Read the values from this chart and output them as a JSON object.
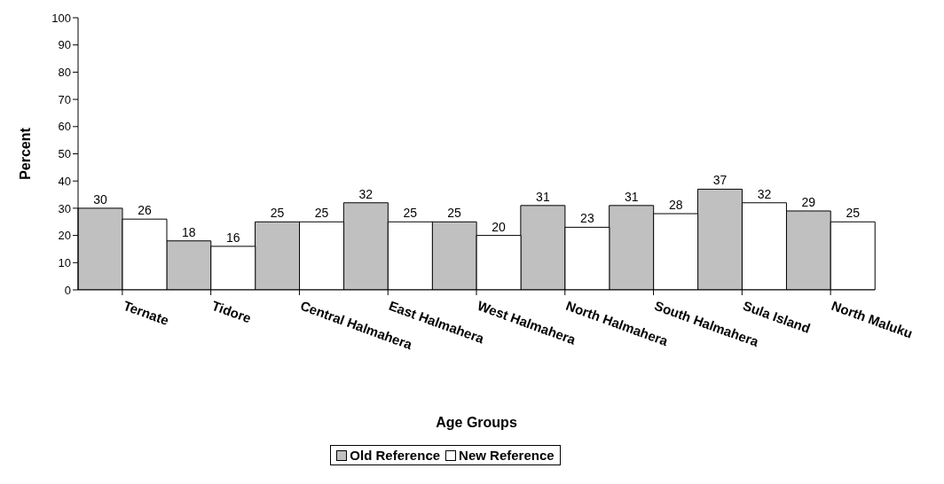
{
  "chart_data": {
    "type": "bar",
    "xlabel": "Age Groups",
    "ylabel": "Percent",
    "categories": [
      "Ternate",
      "Tidore",
      "Central Halmahera",
      "East Halmahera",
      "West Halmahera",
      "North Halmahera",
      "South Halmahera",
      "Sula Island",
      "North Maluku"
    ],
    "series": [
      {
        "name": "Old Reference",
        "color": "#c0c0c0",
        "values": [
          30,
          18,
          25,
          32,
          25,
          31,
          31,
          37,
          29
        ]
      },
      {
        "name": "New Reference",
        "color": "#ffffff",
        "values": [
          26,
          16,
          25,
          25,
          20,
          23,
          28,
          32,
          25
        ]
      }
    ],
    "ylim": [
      0,
      100
    ],
    "yticks": [
      0,
      10,
      20,
      30,
      40,
      50,
      60,
      70,
      80,
      90,
      100
    ],
    "grid": false,
    "data_labels": true,
    "legend": "bottom"
  }
}
